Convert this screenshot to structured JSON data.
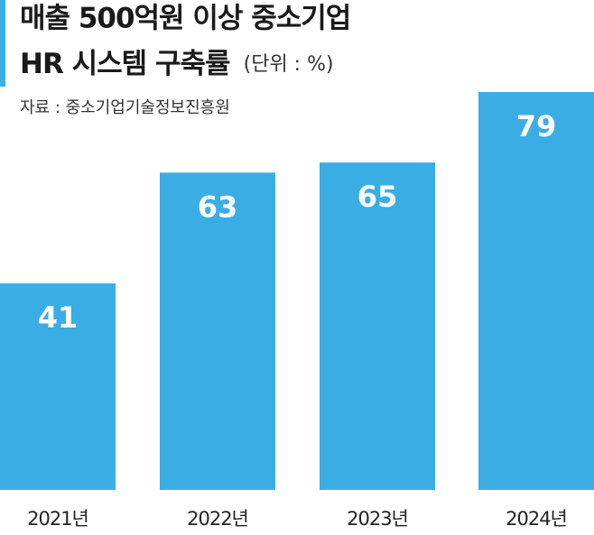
{
  "chart_data": {
    "type": "bar",
    "title": [
      "매출 500억원 이상 중소기업",
      "HR 시스템 구축률"
    ],
    "unit": "(단위 : %)",
    "source": "자료 : 중소기업기술정보진흥원",
    "categories": [
      "2021년",
      "2022년",
      "2023년",
      "2024년"
    ],
    "values": [
      41,
      63,
      65,
      79
    ],
    "color": "#3aaee4"
  }
}
